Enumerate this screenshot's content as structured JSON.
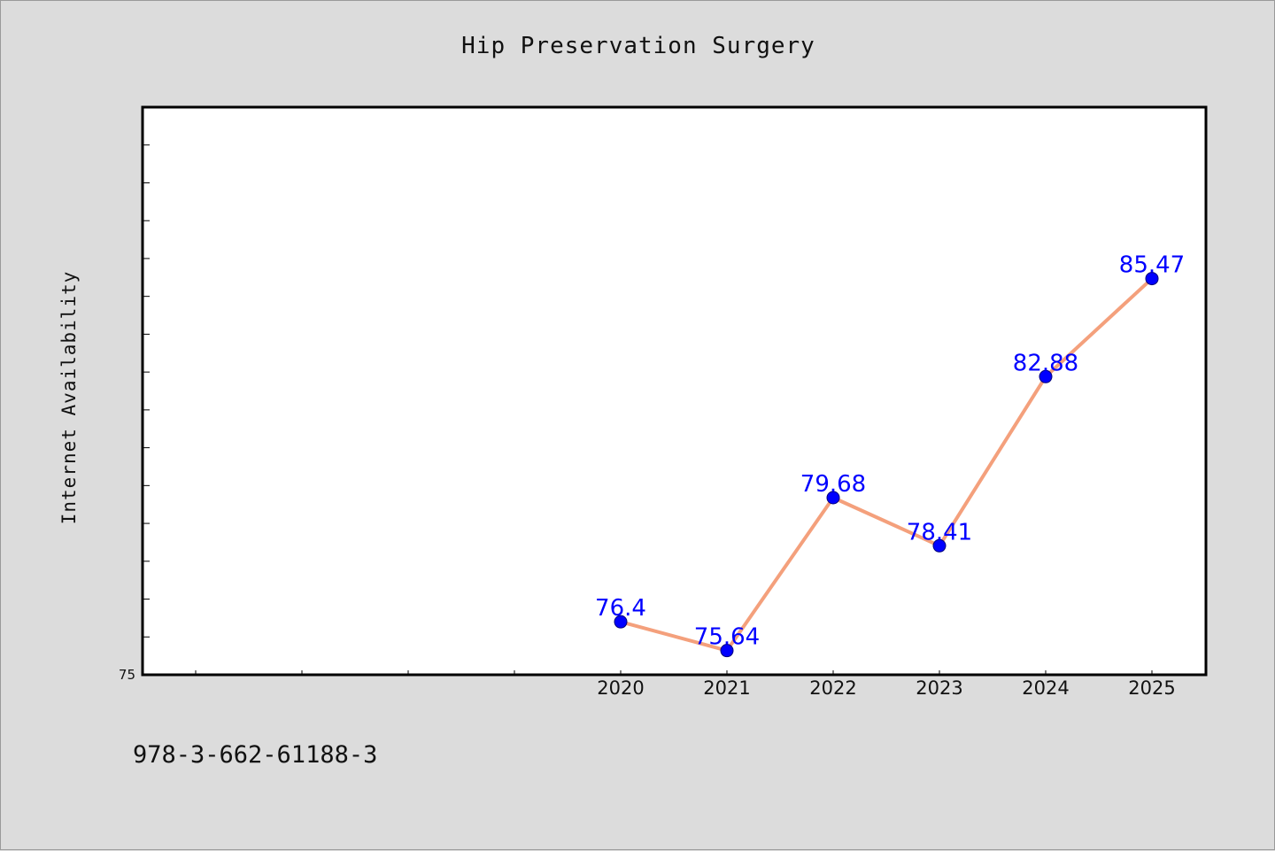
{
  "chart_data": {
    "type": "line",
    "title": "Hip Preservation Surgery",
    "xlabel": "",
    "ylabel": "Internet Availability",
    "categories": [
      "2020",
      "2021",
      "2022",
      "2023",
      "2024",
      "2025"
    ],
    "series": [
      {
        "values": [
          76.4,
          75.64,
          79.68,
          78.41,
          82.88,
          85.47
        ]
      }
    ],
    "ylim": [
      75,
      90
    ],
    "ytick_labels": [
      "75"
    ],
    "grid": false,
    "line_color": "#f4a07c",
    "marker_color": "#0000ff",
    "label_color": "#0000ff"
  },
  "footer": {
    "code": "978-3-662-61188-3"
  },
  "colors": {
    "background": "#dcdcdc",
    "plot_background": "#ffffff"
  }
}
